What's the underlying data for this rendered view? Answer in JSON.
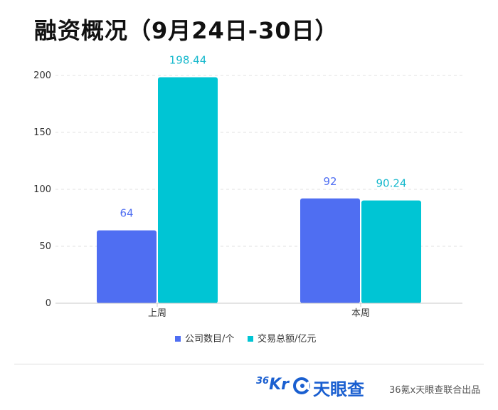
{
  "title": "融资概况（9月24日-30日）",
  "chart_data": {
    "type": "bar",
    "categories": [
      "上周",
      "本周"
    ],
    "series": [
      {
        "name": "公司数目/个",
        "values": [
          64,
          92
        ],
        "labels": [
          "64",
          "92"
        ],
        "color": "#4f6ef2",
        "label_color": "#4f6ef2"
      },
      {
        "name": "交易总额/亿元",
        "values": [
          198.44,
          90.24
        ],
        "labels": [
          "198.44",
          "90.24"
        ],
        "color": "#00c5d4",
        "label_color": "#15b8cc"
      }
    ],
    "ylim": [
      0,
      200
    ],
    "yticks": [
      0,
      50,
      100,
      150,
      200
    ],
    "grid": true,
    "legend": "bottom"
  },
  "footer": {
    "brand_36kr_main": "Kr",
    "brand_36kr_sup": "36",
    "brand_tyc": "天眼查",
    "credit": "36氪x天眼查联合出品"
  },
  "icons": {
    "tyc_logo": "tianyancha-logo-icon"
  }
}
